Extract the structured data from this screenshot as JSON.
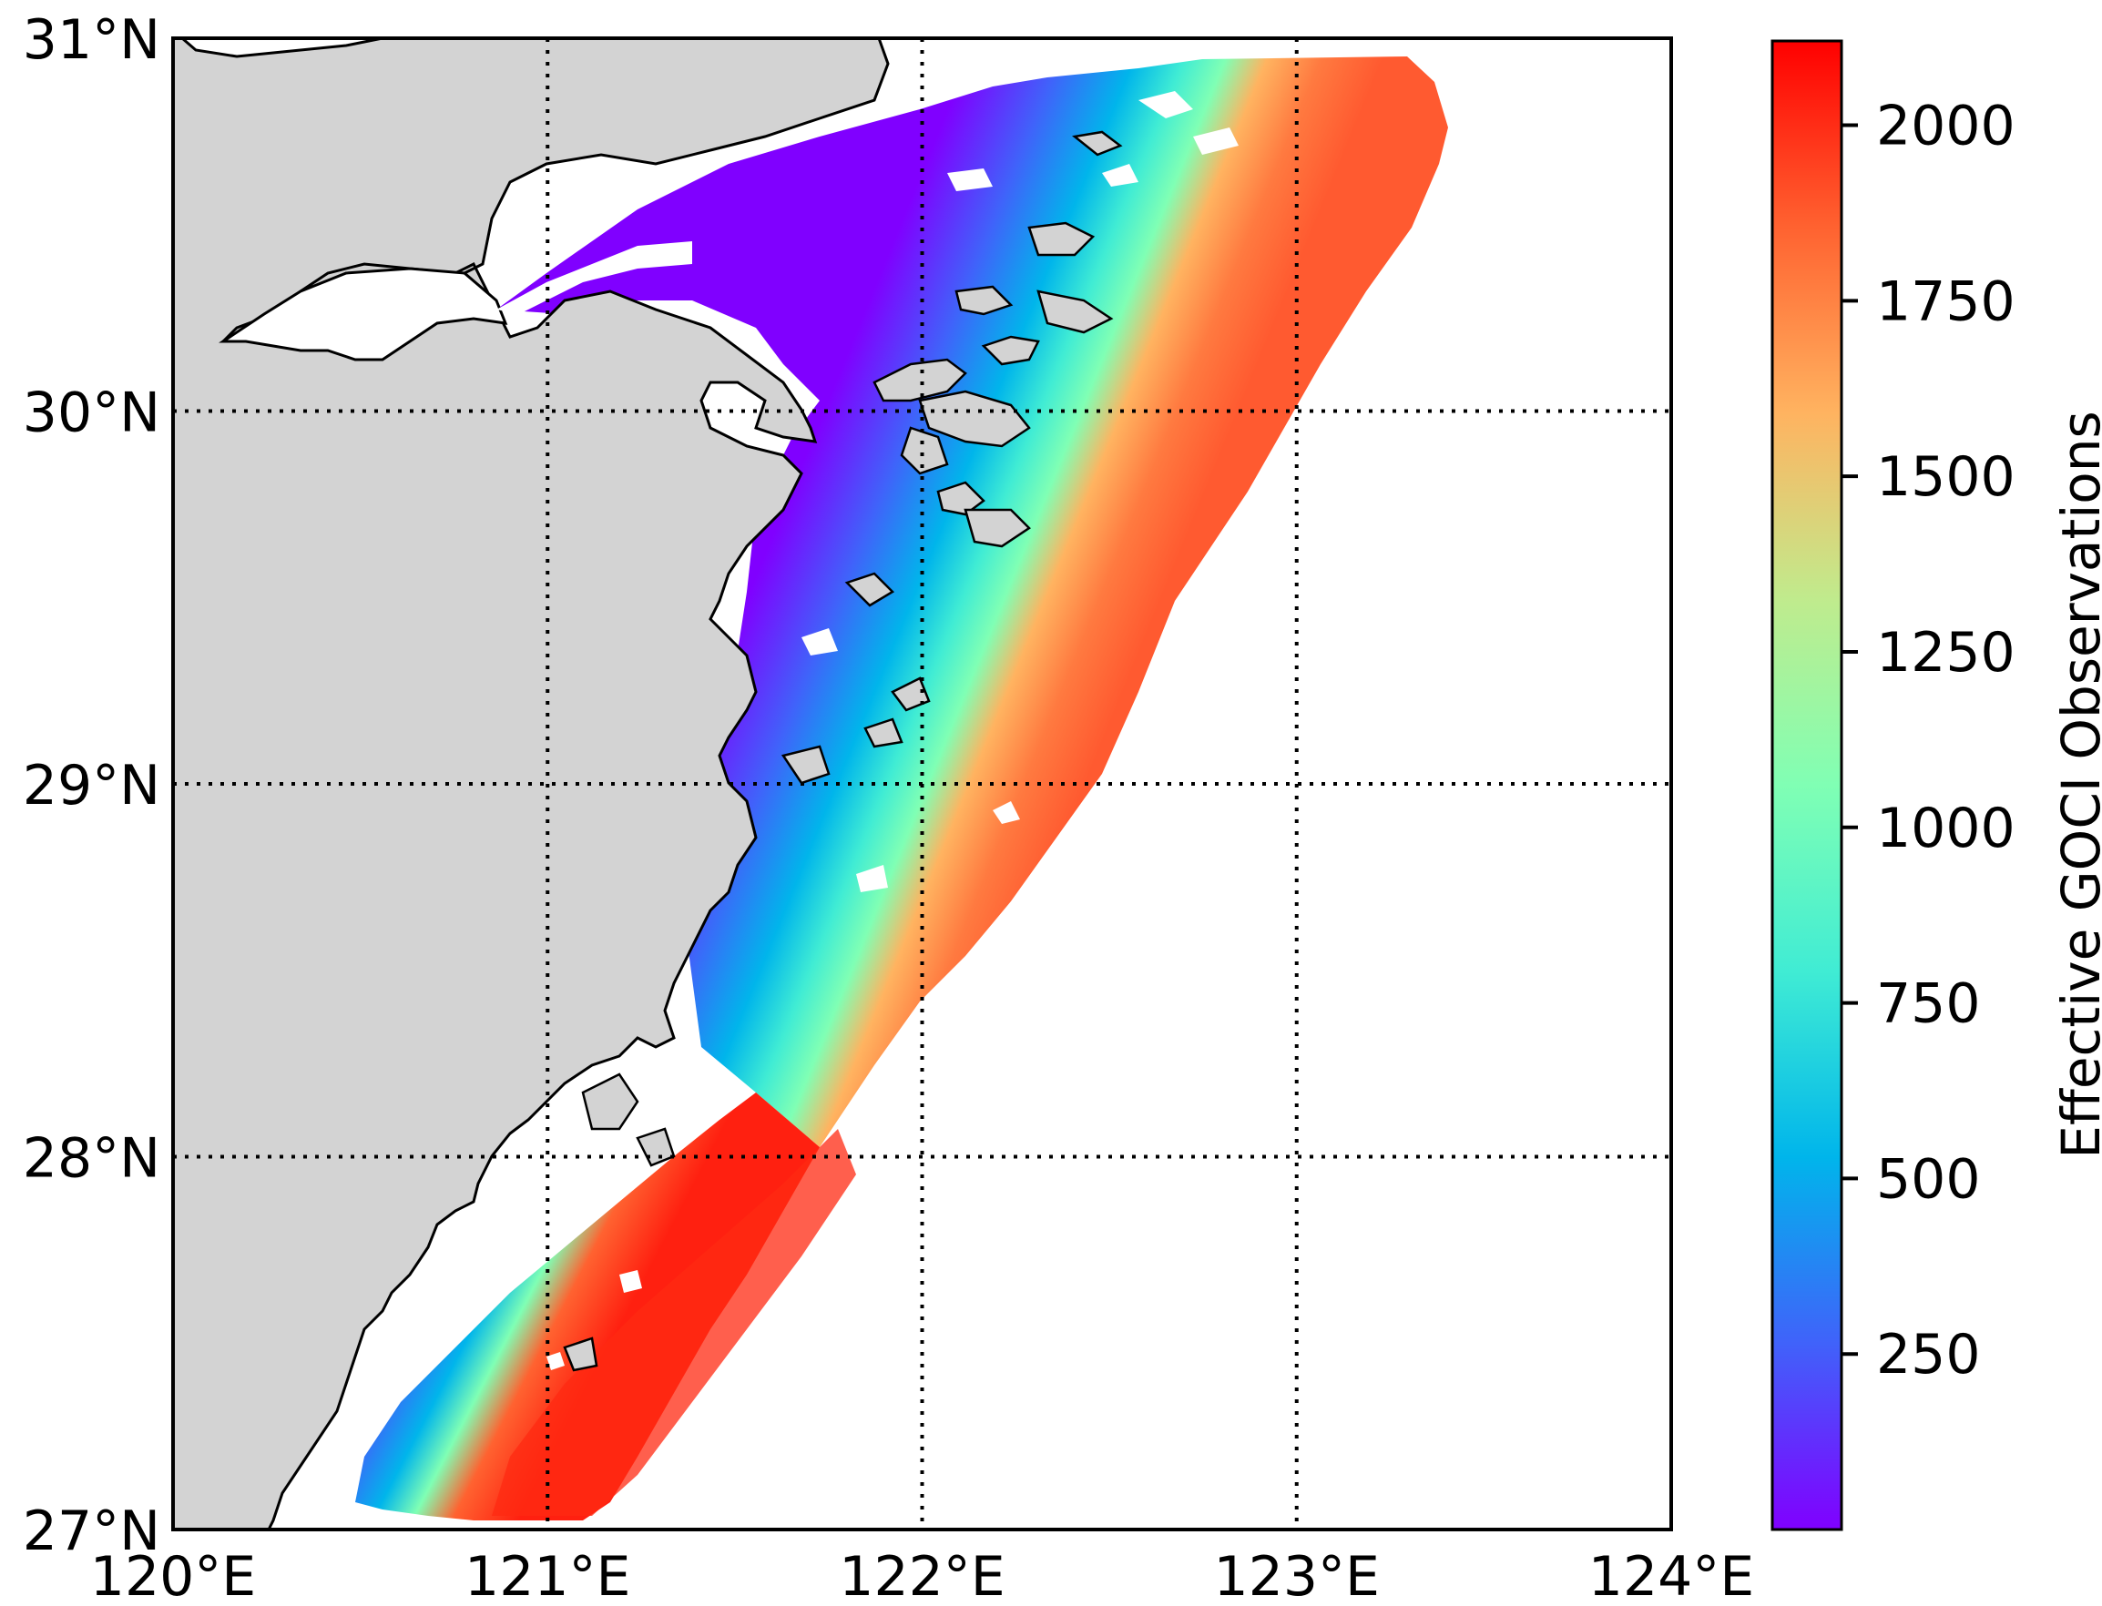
{
  "map": {
    "lon_range": [
      120,
      124
    ],
    "lat_range": [
      27,
      31
    ],
    "gridlines": "dotted",
    "land_color": "#d3d3d3",
    "ocean_nodata_color": "#ffffff",
    "x_ticks": [
      {
        "value": 120,
        "label": "120°E"
      },
      {
        "value": 121,
        "label": "121°E"
      },
      {
        "value": 122,
        "label": "122°E"
      },
      {
        "value": 123,
        "label": "123°E"
      },
      {
        "value": 124,
        "label": "124°E"
      }
    ],
    "y_ticks": [
      {
        "value": 27,
        "label": "27°N"
      },
      {
        "value": 28,
        "label": "28°N"
      },
      {
        "value": 29,
        "label": "29°N"
      },
      {
        "value": 30,
        "label": "30°N"
      },
      {
        "value": 31,
        "label": "31°N"
      }
    ]
  },
  "colorbar": {
    "label": "Effective GOCI Observations",
    "colormap": "rainbow",
    "vmin": 0,
    "vmax": 2120,
    "colors": [
      "#8000ff",
      "#4062fa",
      "#00b5eb",
      "#40ecd4",
      "#80ffb4",
      "#c0eb8d",
      "#ffb360",
      "#ff6230",
      "#ff0000"
    ],
    "ticks": [
      {
        "value": 250,
        "label": "250"
      },
      {
        "value": 500,
        "label": "500"
      },
      {
        "value": 750,
        "label": "750"
      },
      {
        "value": 1000,
        "label": "1000"
      },
      {
        "value": 1250,
        "label": "1250"
      },
      {
        "value": 1500,
        "label": "1500"
      },
      {
        "value": 1750,
        "label": "1750"
      },
      {
        "value": 2000,
        "label": "2000"
      }
    ]
  }
}
